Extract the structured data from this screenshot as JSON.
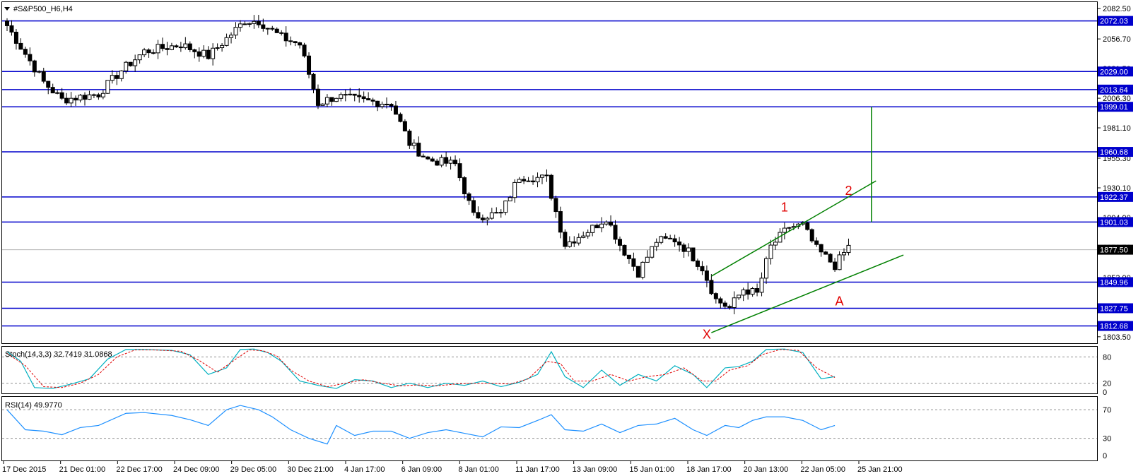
{
  "chart_data": [
    {
      "type": "candlestick",
      "title": "#S&P500_H6,H4",
      "symbol": "#S&P500_H6",
      "timeframe": "H4",
      "ylim": [
        1798,
        2088
      ],
      "y_ticks": [
        "2082.50",
        "2056.70",
        "2031.50",
        "2006.30",
        "1981.10",
        "1955.30",
        "1930.10",
        "1904.90",
        "1879.70",
        "1853.90",
        "1803.50"
      ],
      "x_labels": [
        "17 Dec 2015",
        "21 Dec 01:00",
        "22 Dec 17:00",
        "24 Dec 09:00",
        "29 Dec 05:00",
        "30 Dec 21:00",
        "4 Jan 17:00",
        "6 Jan 09:00",
        "8 Jan 01:00",
        "11 Jan 17:00",
        "13 Jan 09:00",
        "15 Jan 01:00",
        "18 Jan 17:00",
        "20 Jan 13:00",
        "22 Jan 05:00",
        "25 Jan 21:00"
      ],
      "current_price": "1877.50",
      "levels": [
        "2072.03",
        "2029.00",
        "2013.64",
        "1999.01",
        "1960.68",
        "1922.37",
        "1901.03",
        "1849.96",
        "1827.75",
        "1812.68"
      ],
      "annotations": [
        "1",
        "2",
        "X",
        "A"
      ],
      "channel": {
        "upper": [
          [
            154,
            1855
          ],
          [
            190,
            1936
          ]
        ],
        "lower": [
          [
            154,
            1807
          ],
          [
            196,
            1873
          ]
        ]
      },
      "target_line": {
        "bar": 189,
        "from": 1999,
        "to": 1901
      },
      "anchors": [
        [
          0,
          2068
        ],
        [
          8,
          2020
        ],
        [
          12,
          2005
        ],
        [
          20,
          2010
        ],
        [
          25,
          2030
        ],
        [
          30,
          2046
        ],
        [
          38,
          2052
        ],
        [
          44,
          2042
        ],
        [
          52,
          2072
        ],
        [
          55,
          2072
        ],
        [
          60,
          2058
        ],
        [
          64,
          2052
        ],
        [
          68,
          2002
        ],
        [
          72,
          2008
        ],
        [
          78,
          2004
        ],
        [
          84,
          2002
        ],
        [
          88,
          1968
        ],
        [
          92,
          1954
        ],
        [
          98,
          1950
        ],
        [
          102,
          1906
        ],
        [
          108,
          1908
        ],
        [
          112,
          1940
        ],
        [
          118,
          1938
        ],
        [
          122,
          1882
        ],
        [
          128,
          1896
        ],
        [
          131,
          1905
        ],
        [
          134,
          1882
        ],
        [
          138,
          1858
        ],
        [
          142,
          1885
        ],
        [
          146,
          1886
        ],
        [
          149,
          1876
        ],
        [
          152,
          1862
        ],
        [
          155,
          1835
        ],
        [
          158,
          1828
        ],
        [
          161,
          1844
        ],
        [
          164,
          1840
        ],
        [
          167,
          1880
        ],
        [
          171,
          1897
        ],
        [
          174,
          1898
        ],
        [
          177,
          1878
        ],
        [
          181,
          1864
        ],
        [
          184,
          1880
        ]
      ],
      "stoch_label": "Stoch(14,3,3) 32.7419 31.0868",
      "stoch_levels": [
        80,
        20
      ],
      "stoch_scale": [
        "80",
        "20",
        "0"
      ],
      "stoch_main": [
        [
          0,
          92
        ],
        [
          3,
          70
        ],
        [
          6,
          10
        ],
        [
          10,
          8
        ],
        [
          14,
          18
        ],
        [
          18,
          30
        ],
        [
          22,
          75
        ],
        [
          26,
          97
        ],
        [
          30,
          97
        ],
        [
          36,
          95
        ],
        [
          40,
          85
        ],
        [
          44,
          40
        ],
        [
          48,
          55
        ],
        [
          51,
          97
        ],
        [
          54,
          98
        ],
        [
          57,
          90
        ],
        [
          60,
          70
        ],
        [
          64,
          25
        ],
        [
          68,
          15
        ],
        [
          72,
          8
        ],
        [
          76,
          28
        ],
        [
          80,
          25
        ],
        [
          84,
          10
        ],
        [
          88,
          20
        ],
        [
          92,
          10
        ],
        [
          96,
          20
        ],
        [
          100,
          15
        ],
        [
          104,
          25
        ],
        [
          108,
          12
        ],
        [
          112,
          22
        ],
        [
          116,
          40
        ],
        [
          119,
          92
        ],
        [
          122,
          35
        ],
        [
          126,
          10
        ],
        [
          130,
          50
        ],
        [
          134,
          15
        ],
        [
          138,
          40
        ],
        [
          142,
          25
        ],
        [
          146,
          60
        ],
        [
          150,
          40
        ],
        [
          153,
          10
        ],
        [
          157,
          55
        ],
        [
          160,
          58
        ],
        [
          163,
          70
        ],
        [
          166,
          97
        ],
        [
          170,
          98
        ],
        [
          174,
          90
        ],
        [
          178,
          30
        ],
        [
          181,
          35
        ]
      ],
      "stoch_signal": [
        [
          0,
          88
        ],
        [
          4,
          60
        ],
        [
          8,
          12
        ],
        [
          12,
          10
        ],
        [
          16,
          20
        ],
        [
          20,
          40
        ],
        [
          24,
          80
        ],
        [
          28,
          96
        ],
        [
          32,
          96
        ],
        [
          38,
          93
        ],
        [
          42,
          72
        ],
        [
          46,
          45
        ],
        [
          50,
          75
        ],
        [
          53,
          96
        ],
        [
          56,
          94
        ],
        [
          59,
          82
        ],
        [
          62,
          50
        ],
        [
          66,
          25
        ],
        [
          70,
          12
        ],
        [
          74,
          20
        ],
        [
          78,
          28
        ],
        [
          82,
          20
        ],
        [
          86,
          14
        ],
        [
          90,
          16
        ],
        [
          94,
          14
        ],
        [
          98,
          18
        ],
        [
          102,
          20
        ],
        [
          106,
          20
        ],
        [
          110,
          18
        ],
        [
          114,
          30
        ],
        [
          118,
          70
        ],
        [
          121,
          65
        ],
        [
          124,
          25
        ],
        [
          128,
          25
        ],
        [
          132,
          40
        ],
        [
          136,
          25
        ],
        [
          140,
          35
        ],
        [
          144,
          40
        ],
        [
          148,
          55
        ],
        [
          152,
          25
        ],
        [
          155,
          25
        ],
        [
          158,
          50
        ],
        [
          162,
          60
        ],
        [
          165,
          85
        ],
        [
          169,
          97
        ],
        [
          173,
          95
        ],
        [
          177,
          55
        ],
        [
          181,
          33
        ]
      ],
      "rsi_label": "RSI(14) 49.9770",
      "rsi_levels": [
        70,
        30
      ],
      "rsi_scale": [
        "70",
        "30",
        "0"
      ],
      "rsi_values": [
        [
          0,
          70
        ],
        [
          4,
          42
        ],
        [
          8,
          40
        ],
        [
          12,
          35
        ],
        [
          16,
          45
        ],
        [
          20,
          48
        ],
        [
          26,
          65
        ],
        [
          30,
          66
        ],
        [
          36,
          62
        ],
        [
          40,
          56
        ],
        [
          44,
          48
        ],
        [
          48,
          70
        ],
        [
          51,
          76
        ],
        [
          55,
          70
        ],
        [
          58,
          60
        ],
        [
          62,
          42
        ],
        [
          66,
          30
        ],
        [
          70,
          22
        ],
        [
          72,
          48
        ],
        [
          76,
          34
        ],
        [
          80,
          40
        ],
        [
          84,
          40
        ],
        [
          88,
          30
        ],
        [
          92,
          38
        ],
        [
          96,
          42
        ],
        [
          100,
          37
        ],
        [
          104,
          32
        ],
        [
          108,
          46
        ],
        [
          112,
          45
        ],
        [
          116,
          55
        ],
        [
          119,
          63
        ],
        [
          122,
          42
        ],
        [
          126,
          40
        ],
        [
          130,
          50
        ],
        [
          134,
          38
        ],
        [
          138,
          48
        ],
        [
          142,
          50
        ],
        [
          146,
          58
        ],
        [
          150,
          42
        ],
        [
          153,
          34
        ],
        [
          157,
          48
        ],
        [
          160,
          45
        ],
        [
          163,
          55
        ],
        [
          166,
          60
        ],
        [
          170,
          60
        ],
        [
          174,
          55
        ],
        [
          178,
          42
        ],
        [
          181,
          48
        ]
      ]
    }
  ],
  "colors": {
    "level_line": "#0000cc",
    "tag_bg": "#0000cc",
    "price_tag_bg": "#000000",
    "channel": "#008000",
    "annotation": "#e00000",
    "stoch_main": "#00b0c0",
    "stoch_signal": "#e00000",
    "rsi": "#1e90ff",
    "candle_bull": "#ffffff",
    "candle_bear": "#000000"
  }
}
